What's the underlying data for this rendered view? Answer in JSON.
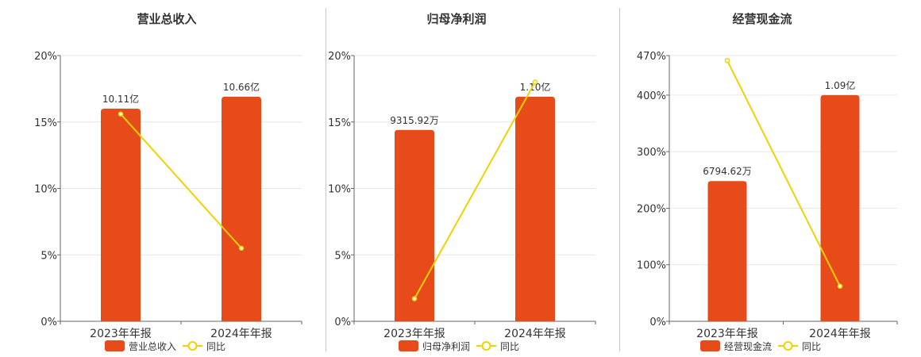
{
  "chart_data": [
    {
      "type": "bar",
      "title": "营业总收入",
      "categories": [
        "2023年年报",
        "2024年年报"
      ],
      "y_ticks": [
        "0%",
        "5%",
        "10%",
        "15%",
        "20%"
      ],
      "ylim": [
        0,
        20
      ],
      "series": [
        {
          "name": "营业总收入",
          "kind": "bar",
          "values": [
            16.0,
            16.9
          ],
          "labels": [
            "10.11亿",
            "10.66亿"
          ],
          "color": "#E84B1A"
        },
        {
          "name": "同比",
          "kind": "line",
          "values": [
            15.6,
            5.5
          ],
          "color": "#F2D100"
        }
      ],
      "legend": "bottom"
    },
    {
      "type": "bar",
      "title": "归母净利润",
      "categories": [
        "2023年年报",
        "2024年年报"
      ],
      "y_ticks": [
        "0%",
        "5%",
        "10%",
        "15%",
        "20%"
      ],
      "ylim": [
        0,
        20
      ],
      "series": [
        {
          "name": "归母净利润",
          "kind": "bar",
          "values": [
            14.4,
            16.9
          ],
          "labels": [
            "9315.92万",
            "1.10亿"
          ],
          "color": "#E84B1A"
        },
        {
          "name": "同比",
          "kind": "line",
          "values": [
            1.7,
            18.0
          ],
          "color": "#F2D100"
        }
      ],
      "legend": "bottom"
    },
    {
      "type": "bar",
      "title": "经营现金流",
      "categories": [
        "2023年年报",
        "2024年年报"
      ],
      "y_ticks": [
        "0%",
        "100%",
        "200%",
        "300%",
        "400%",
        "470%"
      ],
      "ylim": [
        0,
        470
      ],
      "series": [
        {
          "name": "经营现金流",
          "kind": "bar",
          "values": [
            248,
            400
          ],
          "labels": [
            "6794.62万",
            "1.09亿"
          ],
          "color": "#E84B1A"
        },
        {
          "name": "同比",
          "kind": "line",
          "values": [
            461,
            62
          ],
          "color": "#F2D100"
        }
      ],
      "legend": "bottom"
    }
  ]
}
